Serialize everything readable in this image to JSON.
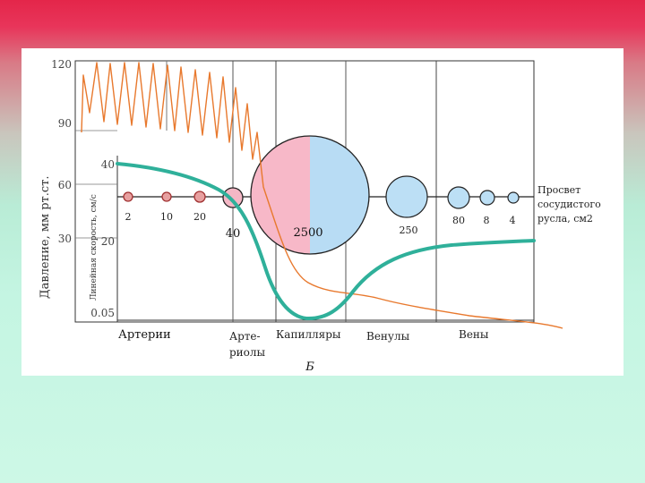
{
  "figure": {
    "pressure_axis_title": "Давление, мм рт.ст.",
    "velocity_axis_title": "Линейная скорость, см/с",
    "pressure_ticks": [
      "120",
      "90",
      "60",
      "30"
    ],
    "velocity_ticks": [
      "40",
      "20",
      "0.05"
    ],
    "area_legend": [
      "Просвет",
      "сосудистого",
      "русла, см2"
    ],
    "segments": {
      "arteries": "Артерии",
      "arterioles_1": "Арте-",
      "arterioles_2": "риолы",
      "capillaries": "Капилляры",
      "venules": "Венулы",
      "veins": "Вены"
    },
    "area_values": [
      "2",
      "10",
      "20",
      "40",
      "2500",
      "250",
      "80",
      "8",
      "4"
    ],
    "caption": "Б"
  },
  "colors": {
    "pressure_curve": "#e8792e",
    "velocity_curve": "#2fb09a",
    "area_small": "#c05050",
    "capillary_left": "#f7b8c8",
    "capillary_right": "#b8dcf4",
    "venous_circles": "#bcdff5",
    "slide_background_top": "#e4264a",
    "slide_background_bottom": "#cdf8e6"
  }
}
